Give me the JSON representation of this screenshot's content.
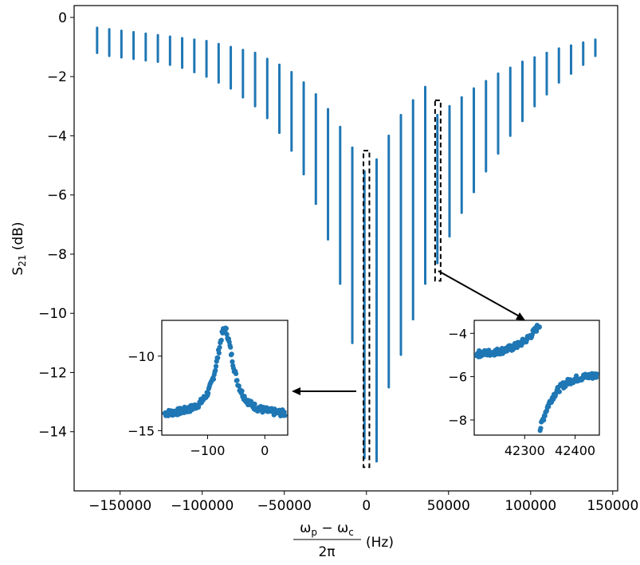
{
  "chart_data": {
    "type": "line",
    "series_color": "#1f77b4",
    "ylabel": {
      "main": "S",
      "sub": "21",
      "rest": " (dB)"
    },
    "xlabel": {
      "numerator": "ω_p − ω_c",
      "num_main1": "ω",
      "num_sub1": "p",
      "num_op": " − ",
      "num_main2": "ω",
      "num_sub2": "c",
      "denominator": "2π",
      "unit": "(Hz)"
    },
    "xlim": [
      -178000,
      153000
    ],
    "ylim": [
      -16.0,
      0.4
    ],
    "xticks": [
      -150000,
      -100000,
      -50000,
      0,
      50000,
      100000,
      150000
    ],
    "xtick_labels": [
      "−150000",
      "−100000",
      "−50000",
      "0",
      "50000",
      "100000",
      "150000"
    ],
    "yticks": [
      0,
      -2,
      -4,
      -6,
      -8,
      -10,
      -12,
      -14
    ],
    "ytick_labels": [
      "0",
      "−2",
      "−4",
      "−6",
      "−8",
      "−10",
      "−12",
      "−14"
    ],
    "sweeps": [
      {
        "x": -164000,
        "top": -0.35,
        "bottom": -1.2
      },
      {
        "x": -156600,
        "top": -0.4,
        "bottom": -1.3
      },
      {
        "x": -149200,
        "top": -0.45,
        "bottom": -1.35
      },
      {
        "x": -141800,
        "top": -0.5,
        "bottom": -1.4
      },
      {
        "x": -134400,
        "top": -0.55,
        "bottom": -1.45
      },
      {
        "x": -127000,
        "top": -0.6,
        "bottom": -1.5
      },
      {
        "x": -119600,
        "top": -0.65,
        "bottom": -1.6
      },
      {
        "x": -112200,
        "top": -0.7,
        "bottom": -1.7
      },
      {
        "x": -104800,
        "top": -0.75,
        "bottom": -1.85
      },
      {
        "x": -97400,
        "top": -0.8,
        "bottom": -2.0
      },
      {
        "x": -90000,
        "top": -0.9,
        "bottom": -2.2
      },
      {
        "x": -82600,
        "top": -1.0,
        "bottom": -2.4
      },
      {
        "x": -75200,
        "top": -1.1,
        "bottom": -2.7
      },
      {
        "x": -67800,
        "top": -1.2,
        "bottom": -3.0
      },
      {
        "x": -60400,
        "top": -1.4,
        "bottom": -3.4
      },
      {
        "x": -53000,
        "top": -1.6,
        "bottom": -3.9
      },
      {
        "x": -45600,
        "top": -1.85,
        "bottom": -4.5
      },
      {
        "x": -38200,
        "top": -2.2,
        "bottom": -5.3
      },
      {
        "x": -30800,
        "top": -2.6,
        "bottom": -6.3
      },
      {
        "x": -23400,
        "top": -3.1,
        "bottom": -7.5
      },
      {
        "x": -16000,
        "top": -3.7,
        "bottom": -9.0
      },
      {
        "x": -8600,
        "top": -4.4,
        "bottom": -11.0
      },
      {
        "x": -1200,
        "top": -5.2,
        "bottom": -14.9
      },
      {
        "x": 6200,
        "top": -4.8,
        "bottom": -15.0
      },
      {
        "x": 13600,
        "top": -4.0,
        "bottom": -12.5
      },
      {
        "x": 21000,
        "top": -3.3,
        "bottom": -11.4
      },
      {
        "x": 28400,
        "top": -2.8,
        "bottom": -10.2
      },
      {
        "x": 35800,
        "top": -2.35,
        "bottom": -9.0
      },
      {
        "x": 43200,
        "top": -3.3,
        "bottom": -8.3
      },
      {
        "x": 50600,
        "top": -3.0,
        "bottom": -7.4
      },
      {
        "x": 58000,
        "top": -2.7,
        "bottom": -6.6
      },
      {
        "x": 65400,
        "top": -2.4,
        "bottom": -5.9
      },
      {
        "x": 72800,
        "top": -2.15,
        "bottom": -5.2
      },
      {
        "x": 80200,
        "top": -1.9,
        "bottom": -4.6
      },
      {
        "x": 87600,
        "top": -1.7,
        "bottom": -4.0
      },
      {
        "x": 95000,
        "top": -1.5,
        "bottom": -3.5
      },
      {
        "x": 102400,
        "top": -1.35,
        "bottom": -3.0
      },
      {
        "x": 109800,
        "top": -1.2,
        "bottom": -2.6
      },
      {
        "x": 117200,
        "top": -1.05,
        "bottom": -2.2
      },
      {
        "x": 124600,
        "top": -0.95,
        "bottom": -1.9
      },
      {
        "x": 132000,
        "top": -0.85,
        "bottom": -1.6
      },
      {
        "x": 139400,
        "top": -0.75,
        "bottom": -1.3
      }
    ],
    "highlight_boxes": [
      {
        "name": "box-center",
        "x0": -1800,
        "x1": 1800,
        "y0": -15.2,
        "y1": -4.5
      },
      {
        "name": "box-right",
        "x0": 41800,
        "x1": 45200,
        "y0": -8.9,
        "y1": -2.8
      }
    ],
    "insets": [
      {
        "name": "inset-left",
        "type": "scatter",
        "xlim": [
          -180,
          40
        ],
        "ylim": [
          -15.3,
          -7.6
        ],
        "xticks": [
          -100,
          0
        ],
        "xtick_labels": [
          "−100",
          "0"
        ],
        "yticks": [
          -10,
          -15
        ],
        "ytick_labels": [
          "−10",
          "−15"
        ],
        "shape": "lorentzian-peak",
        "center": -70,
        "width": 18,
        "base": -14.0,
        "peak": -8.2
      },
      {
        "name": "inset-right",
        "type": "scatter",
        "xlim": [
          42200,
          42448
        ],
        "ylim": [
          -8.7,
          -3.4
        ],
        "xticks": [
          42300,
          42400
        ],
        "xtick_labels": [
          "42300",
          "42400"
        ],
        "yticks": [
          -4,
          -6,
          -8
        ],
        "ytick_labels": [
          "−4",
          "−6",
          "−8"
        ],
        "shape": "fano",
        "center": 42330,
        "base": -5.0,
        "end": -5.9
      }
    ]
  }
}
